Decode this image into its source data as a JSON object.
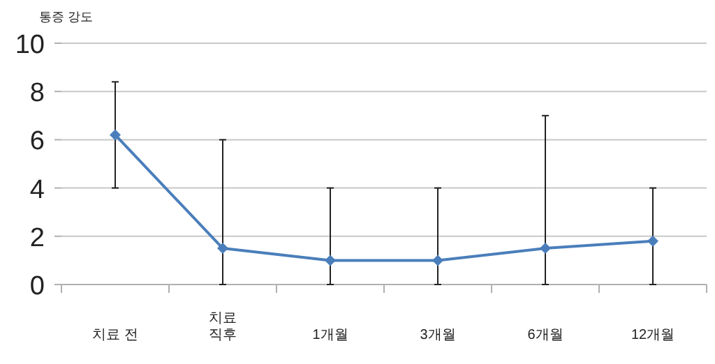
{
  "chart_data": {
    "type": "line",
    "ylabel": "통증 강도",
    "categories": [
      "치료 전",
      "치료\n직후",
      "1개월",
      "3개월",
      "6개월",
      "12개월"
    ],
    "series": [
      {
        "color": "#4a7ebb",
        "values": [
          6.2,
          1.5,
          1.0,
          1.0,
          1.5,
          1.8
        ],
        "errors": [
          [
            4,
            8.4
          ],
          [
            0,
            6
          ],
          [
            0,
            4
          ],
          [
            0,
            4
          ],
          [
            0,
            7
          ],
          [
            0,
            4
          ]
        ]
      }
    ],
    "ylim": [
      0,
      10
    ],
    "yticks": [
      0,
      2,
      4,
      6,
      8,
      10
    ],
    "grid": "y",
    "marker": "diamond",
    "line_style": "solid"
  }
}
